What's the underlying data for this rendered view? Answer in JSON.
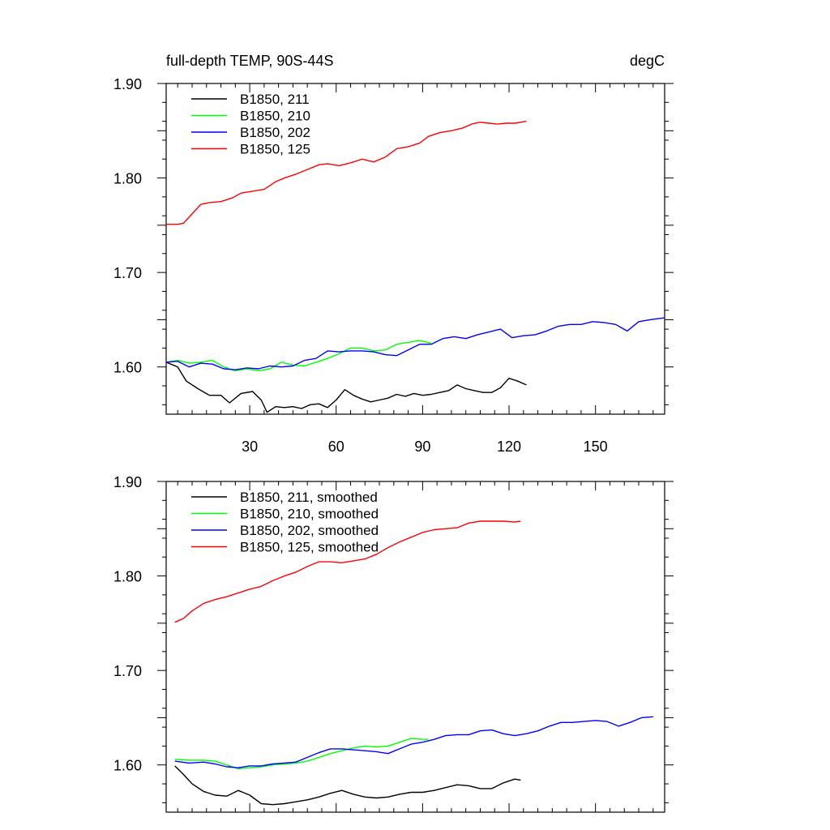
{
  "chart_data": [
    {
      "type": "line",
      "title_left": "full-depth TEMP, 90S-44S",
      "title_right": "degC",
      "xlabel": "",
      "ylabel": "",
      "xlim": [
        1,
        174
      ],
      "ylim": [
        1.55,
        1.9
      ],
      "xticks": [
        30,
        60,
        90,
        120,
        150
      ],
      "yticks": [
        1.6,
        1.7,
        1.8,
        1.9
      ],
      "ytick_labels": [
        "1.60",
        "1.70",
        "1.80",
        "1.90"
      ],
      "show_xtick_labels": true,
      "legend_position": "top-left",
      "series": [
        {
          "name": "B1850, 211",
          "color": "#000000",
          "x": [
            1,
            5,
            8,
            12,
            16,
            20,
            23,
            27,
            31,
            34,
            36,
            39,
            42,
            45,
            48,
            51,
            54,
            57,
            60,
            63,
            66,
            69,
            72,
            75,
            78,
            81,
            84,
            87,
            90,
            93,
            96,
            99,
            102,
            105,
            108,
            111,
            114,
            117,
            120,
            123,
            126
          ],
          "y": [
            1.605,
            1.6,
            1.585,
            1.577,
            1.57,
            1.57,
            1.562,
            1.572,
            1.574,
            1.565,
            1.552,
            1.558,
            1.557,
            1.558,
            1.556,
            1.56,
            1.561,
            1.557,
            1.565,
            1.576,
            1.57,
            1.566,
            1.563,
            1.565,
            1.567,
            1.571,
            1.569,
            1.572,
            1.57,
            1.571,
            1.573,
            1.575,
            1.581,
            1.577,
            1.575,
            1.573,
            1.573,
            1.578,
            1.588,
            1.585,
            1.581
          ]
        },
        {
          "name": "B1850, 210",
          "color": "#00ff00",
          "x": [
            1,
            5,
            9,
            13,
            17,
            21,
            25,
            29,
            33,
            37,
            41,
            45,
            49,
            53,
            57,
            61,
            65,
            69,
            73,
            77,
            81,
            85,
            89,
            93
          ],
          "y": [
            1.605,
            1.607,
            1.604,
            1.605,
            1.607,
            1.6,
            1.596,
            1.598,
            1.596,
            1.598,
            1.605,
            1.602,
            1.601,
            1.605,
            1.609,
            1.614,
            1.62,
            1.62,
            1.617,
            1.618,
            1.624,
            1.626,
            1.628,
            1.625
          ]
        },
        {
          "name": "B1850, 202",
          "color": "#0000ff",
          "x": [
            1,
            5,
            9,
            13,
            17,
            21,
            25,
            29,
            33,
            37,
            41,
            45,
            49,
            53,
            57,
            61,
            65,
            69,
            73,
            77,
            81,
            85,
            89,
            93,
            97,
            101,
            105,
            109,
            113,
            117,
            121,
            125,
            129,
            133,
            137,
            141,
            145,
            149,
            153,
            157,
            161,
            165,
            169,
            174
          ],
          "y": [
            1.605,
            1.606,
            1.6,
            1.604,
            1.603,
            1.598,
            1.597,
            1.599,
            1.598,
            1.601,
            1.6,
            1.601,
            1.607,
            1.609,
            1.617,
            1.616,
            1.617,
            1.617,
            1.616,
            1.613,
            1.612,
            1.618,
            1.624,
            1.624,
            1.63,
            1.632,
            1.63,
            1.634,
            1.637,
            1.64,
            1.631,
            1.633,
            1.634,
            1.638,
            1.643,
            1.645,
            1.645,
            1.648,
            1.647,
            1.645,
            1.638,
            1.648,
            1.65,
            1.652
          ]
        },
        {
          "name": "B1850, 125",
          "color": "#ff0000",
          "x": [
            1,
            5,
            7,
            10,
            13,
            16,
            20,
            24,
            27,
            31,
            35,
            39,
            42,
            46,
            50,
            54,
            57,
            61,
            65,
            69,
            73,
            77,
            81,
            85,
            89,
            92,
            96,
            100,
            104,
            107,
            110,
            113,
            116,
            119,
            122,
            126
          ],
          "y": [
            1.751,
            1.751,
            1.752,
            1.762,
            1.772,
            1.774,
            1.775,
            1.779,
            1.784,
            1.786,
            1.788,
            1.796,
            1.8,
            1.804,
            1.809,
            1.814,
            1.815,
            1.813,
            1.816,
            1.82,
            1.817,
            1.822,
            1.831,
            1.833,
            1.837,
            1.844,
            1.848,
            1.85,
            1.853,
            1.857,
            1.859,
            1.858,
            1.857,
            1.858,
            1.858,
            1.86
          ]
        }
      ]
    },
    {
      "type": "line",
      "xlabel": "",
      "ylabel": "",
      "xlim": [
        1,
        174
      ],
      "ylim": [
        1.55,
        1.9
      ],
      "xticks": [
        30,
        60,
        90,
        120,
        150
      ],
      "yticks": [
        1.6,
        1.7,
        1.8,
        1.9
      ],
      "ytick_labels": [
        "1.60",
        "1.70",
        "1.80",
        "1.90"
      ],
      "show_xtick_labels": false,
      "legend_position": "top-left",
      "series": [
        {
          "name": "B1850, 211, smoothed",
          "color": "#000000",
          "x": [
            4,
            7,
            10,
            14,
            18,
            22,
            26,
            30,
            34,
            38,
            42,
            46,
            50,
            54,
            58,
            62,
            66,
            70,
            74,
            78,
            82,
            86,
            90,
            94,
            98,
            102,
            106,
            110,
            114,
            118,
            122,
            124
          ],
          "y": [
            1.599,
            1.59,
            1.58,
            1.572,
            1.568,
            1.567,
            1.573,
            1.568,
            1.559,
            1.558,
            1.559,
            1.561,
            1.563,
            1.566,
            1.57,
            1.573,
            1.569,
            1.566,
            1.565,
            1.566,
            1.569,
            1.571,
            1.571,
            1.573,
            1.576,
            1.579,
            1.578,
            1.575,
            1.575,
            1.581,
            1.585,
            1.584
          ]
        },
        {
          "name": "B1850, 210, smoothed",
          "color": "#00ff00",
          "x": [
            4,
            9,
            14,
            18,
            22,
            26,
            30,
            34,
            38,
            42,
            46,
            50,
            54,
            58,
            62,
            66,
            70,
            74,
            78,
            82,
            86,
            90,
            92
          ],
          "y": [
            1.606,
            1.605,
            1.605,
            1.604,
            1.6,
            1.596,
            1.597,
            1.598,
            1.6,
            1.601,
            1.602,
            1.604,
            1.608,
            1.612,
            1.615,
            1.618,
            1.62,
            1.619,
            1.62,
            1.624,
            1.628,
            1.627,
            1.627
          ]
        },
        {
          "name": "B1850, 202, smoothed",
          "color": "#0000ff",
          "x": [
            4,
            9,
            14,
            18,
            22,
            26,
            30,
            34,
            38,
            42,
            46,
            50,
            54,
            58,
            62,
            66,
            70,
            74,
            78,
            82,
            86,
            90,
            94,
            98,
            102,
            106,
            110,
            114,
            118,
            122,
            126,
            130,
            134,
            138,
            142,
            146,
            150,
            154,
            158,
            162,
            166,
            170
          ],
          "y": [
            1.604,
            1.602,
            1.603,
            1.601,
            1.598,
            1.597,
            1.599,
            1.599,
            1.601,
            1.602,
            1.603,
            1.608,
            1.613,
            1.617,
            1.617,
            1.616,
            1.615,
            1.614,
            1.612,
            1.617,
            1.622,
            1.624,
            1.627,
            1.631,
            1.632,
            1.632,
            1.636,
            1.637,
            1.633,
            1.631,
            1.633,
            1.636,
            1.641,
            1.645,
            1.645,
            1.646,
            1.647,
            1.646,
            1.641,
            1.645,
            1.65,
            1.651
          ]
        },
        {
          "name": "B1850, 125, smoothed",
          "color": "#ff0000",
          "x": [
            4,
            7,
            10,
            14,
            18,
            22,
            26,
            30,
            34,
            38,
            42,
            46,
            50,
            54,
            58,
            62,
            66,
            70,
            74,
            78,
            82,
            86,
            90,
            94,
            98,
            102,
            106,
            110,
            114,
            118,
            122,
            124
          ],
          "y": [
            1.751,
            1.755,
            1.763,
            1.771,
            1.775,
            1.778,
            1.782,
            1.786,
            1.789,
            1.795,
            1.8,
            1.804,
            1.81,
            1.815,
            1.815,
            1.814,
            1.816,
            1.818,
            1.823,
            1.83,
            1.836,
            1.841,
            1.846,
            1.849,
            1.85,
            1.851,
            1.856,
            1.858,
            1.858,
            1.858,
            1.857,
            1.858
          ]
        }
      ]
    }
  ]
}
